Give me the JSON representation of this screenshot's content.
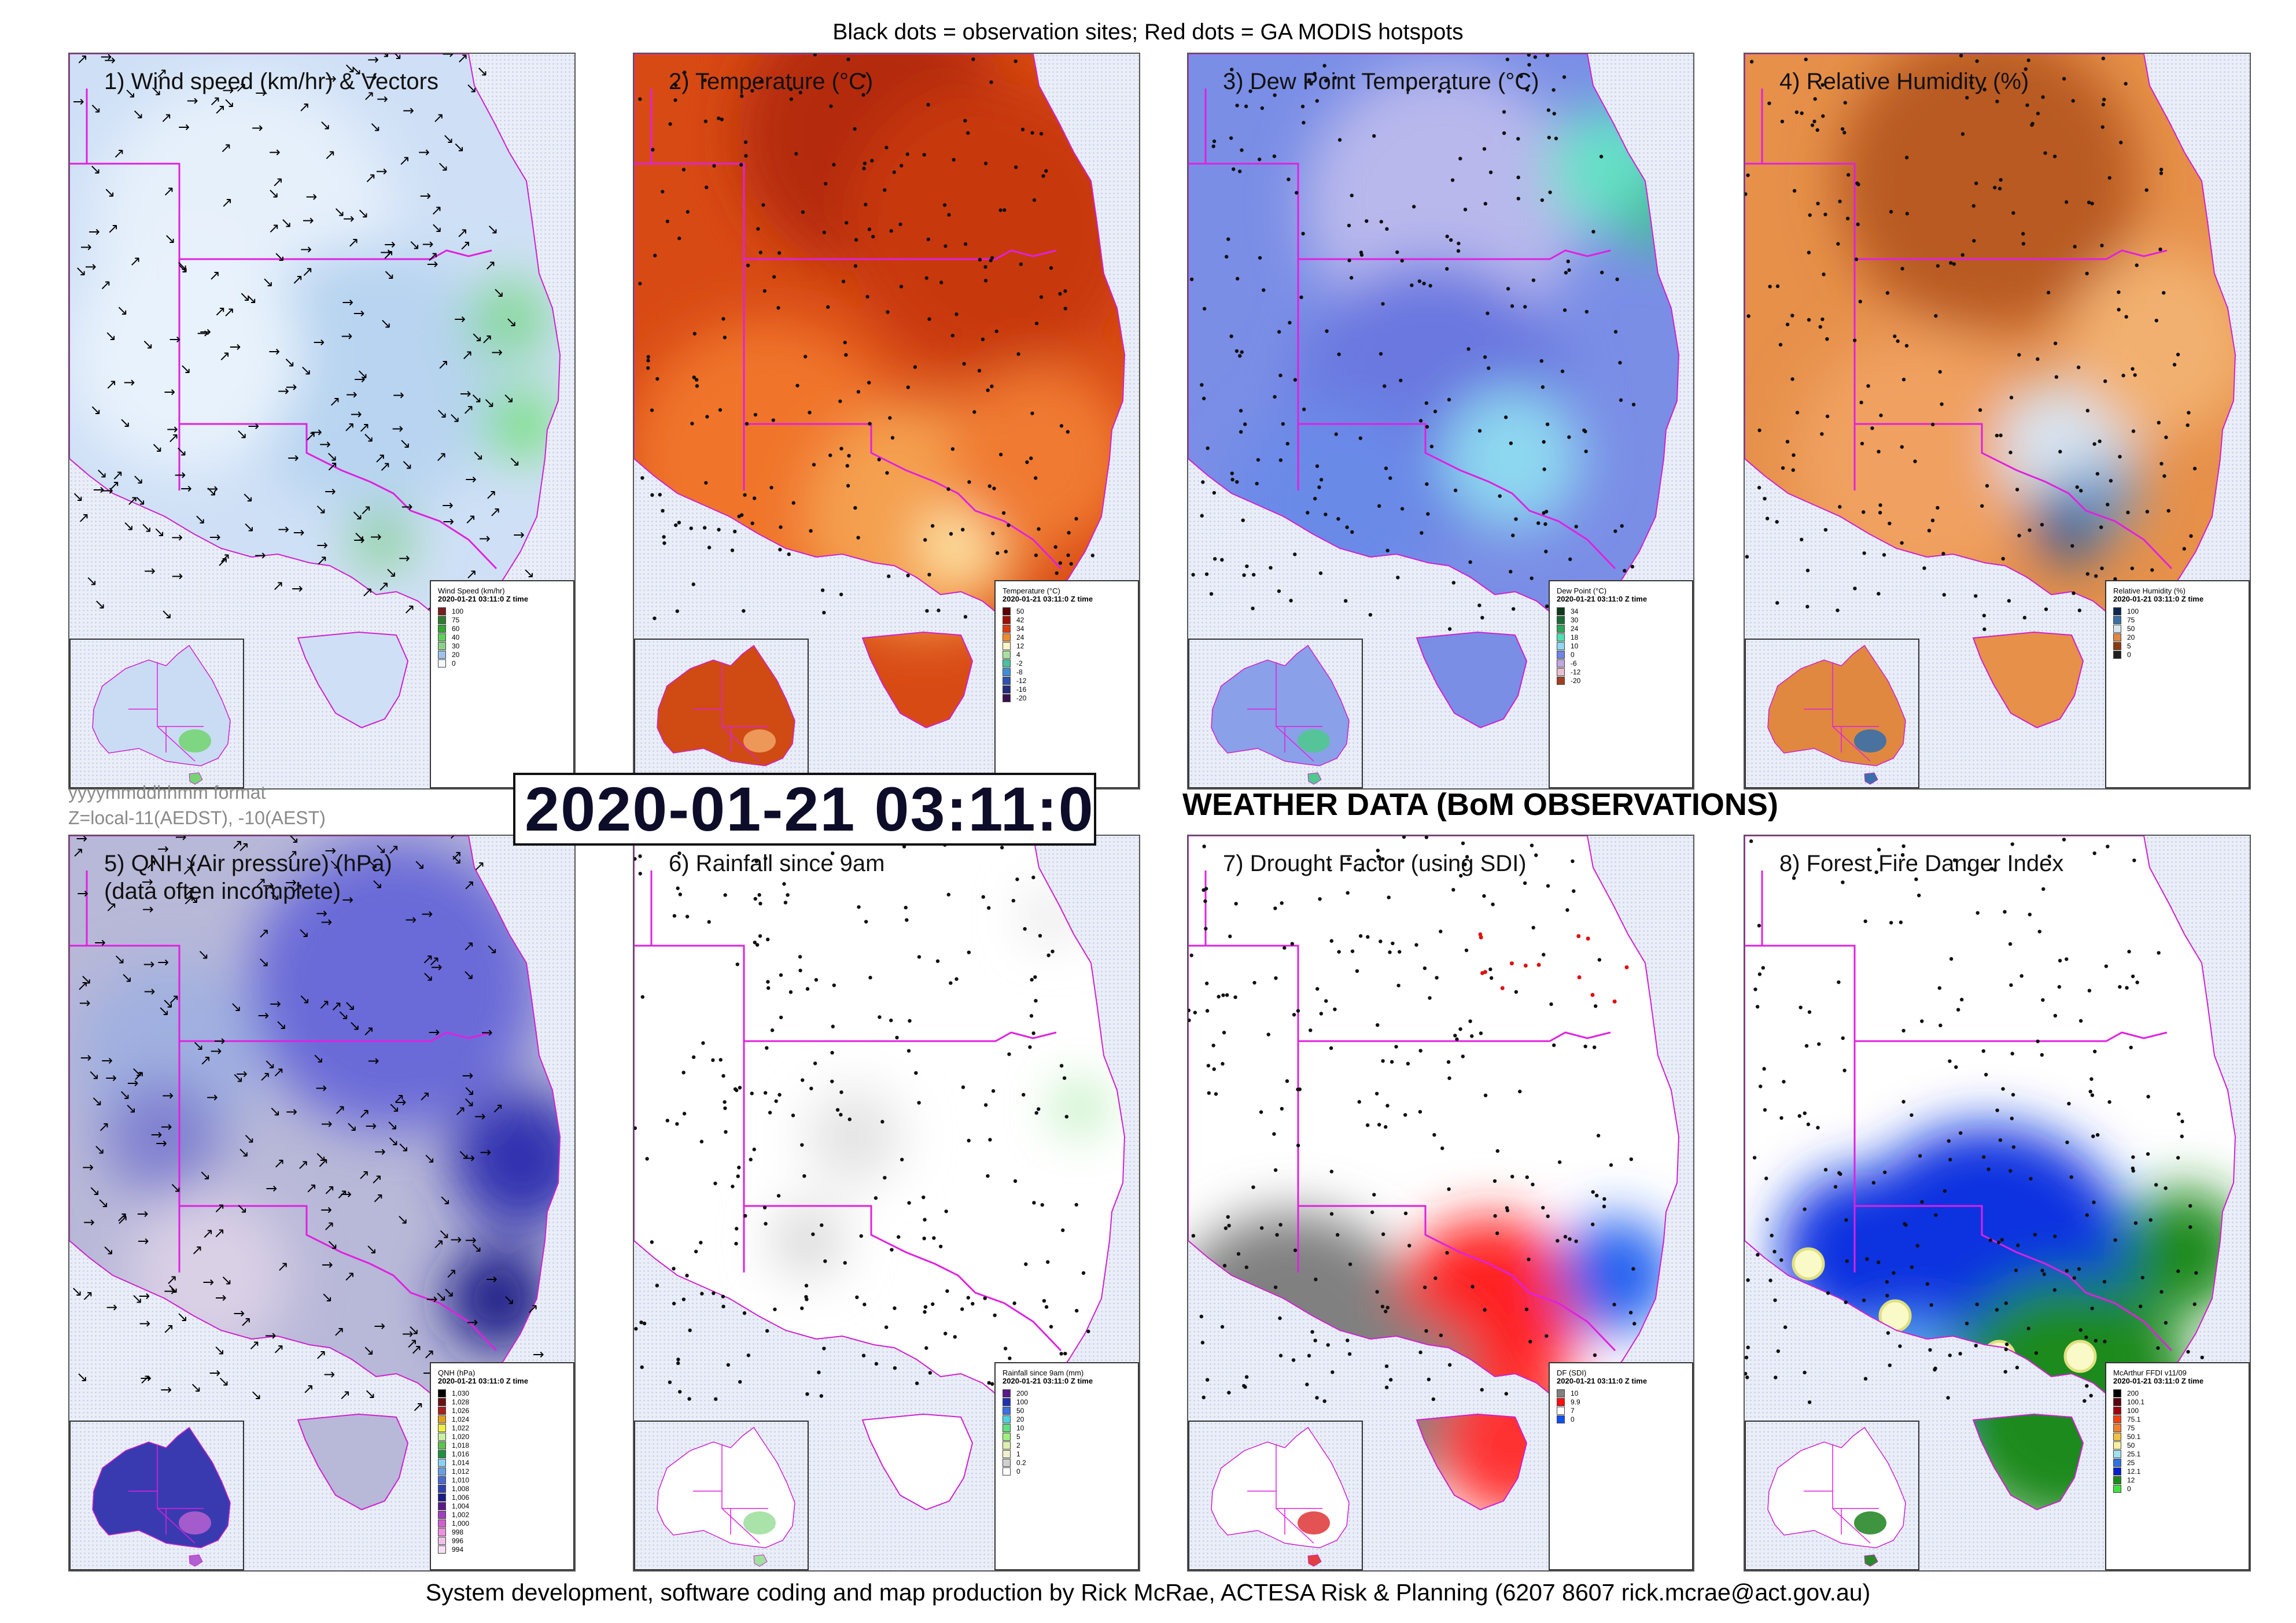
{
  "header": {
    "caption": "Black dots = observation sites; Red dots = GA MODIS hotspots"
  },
  "footer": {
    "credit": "System development, software coding and map production by Rick McRae, ACTESA Risk & Planning (6207 8607 rick.mcrae@act.gov.au)"
  },
  "center": {
    "format_note": "yyyymmddhhmm format",
    "zone_note": "Z=local-11(AEDST), -10(AEST)",
    "timestamp": "2020-01-21 03:11:0",
    "heading": "WEATHER DATA (BoM OBSERVATIONS)"
  },
  "legend_time": "2020-01-21 03:11:0 Z time",
  "panels": [
    {
      "title": "1) Wind speed (km/hr) & Vectors",
      "title2": "",
      "legend_title": "Wind Speed (km/hr)",
      "legend": [
        {
          "label": "100",
          "color": "#7a1f1f"
        },
        {
          "label": "75",
          "color": "#2e7d2e"
        },
        {
          "label": "60",
          "color": "#35a535"
        },
        {
          "label": "40",
          "color": "#5ecf5e"
        },
        {
          "label": "30",
          "color": "#8ad08a"
        },
        {
          "label": "20",
          "color": "#9ec3ea"
        },
        {
          "label": "0",
          "color": "#f4f8ff"
        }
      ]
    },
    {
      "title": "2) Temperature (°C)",
      "title2": "",
      "legend_title": "Temperature (°C)",
      "legend": [
        {
          "label": "50",
          "color": "#5c0000"
        },
        {
          "label": "42",
          "color": "#a00f00"
        },
        {
          "label": "34",
          "color": "#d93b10"
        },
        {
          "label": "24",
          "color": "#f08a30"
        },
        {
          "label": "12",
          "color": "#fff6c8"
        },
        {
          "label": "4",
          "color": "#a8e0a0"
        },
        {
          "label": "-2",
          "color": "#4cc0a0"
        },
        {
          "label": "-8",
          "color": "#3f8ed8"
        },
        {
          "label": "-12",
          "color": "#3050b0"
        },
        {
          "label": "-16",
          "color": "#252a80"
        },
        {
          "label": "-20",
          "color": "#3a1050"
        }
      ]
    },
    {
      "title": "3) Dew Point Temperature (°C)",
      "title2": "",
      "legend_title": "Dew Point (°C)",
      "legend": [
        {
          "label": "34",
          "color": "#0d3b1a"
        },
        {
          "label": "30",
          "color": "#1a6b36"
        },
        {
          "label": "24",
          "color": "#2fa55a"
        },
        {
          "label": "18",
          "color": "#50e0b0"
        },
        {
          "label": "10",
          "color": "#8ed8f0"
        },
        {
          "label": "0",
          "color": "#6f84e6"
        },
        {
          "label": "-6",
          "color": "#c0a8e0"
        },
        {
          "label": "-12",
          "color": "#e8c0d0"
        },
        {
          "label": "-20",
          "color": "#a04020"
        }
      ]
    },
    {
      "title": "4) Relative Humidity (%)",
      "title2": "",
      "legend_title": "Relative Humidity (%)",
      "legend": [
        {
          "label": "100",
          "color": "#102850"
        },
        {
          "label": "75",
          "color": "#3a70a8"
        },
        {
          "label": "50",
          "color": "#d8e4f0"
        },
        {
          "label": "20",
          "color": "#e08840"
        },
        {
          "label": "5",
          "color": "#8a3a10"
        },
        {
          "label": "0",
          "color": "#202020"
        }
      ]
    },
    {
      "title": "5) QNH (Air pressure) (hPa)",
      "title2": "(data often incomplete)",
      "legend_title": "QNH (hPa)",
      "legend": [
        {
          "label": "1,030",
          "color": "#000000"
        },
        {
          "label": "1,028",
          "color": "#6a1010"
        },
        {
          "label": "1,026",
          "color": "#a82020"
        },
        {
          "label": "1,024",
          "color": "#e0a020"
        },
        {
          "label": "1,022",
          "color": "#f0f040"
        },
        {
          "label": "1,020",
          "color": "#c8f0a0"
        },
        {
          "label": "1,018",
          "color": "#60c050"
        },
        {
          "label": "1,016",
          "color": "#209040"
        },
        {
          "label": "1,014",
          "color": "#8ad0f0"
        },
        {
          "label": "1,012",
          "color": "#6aa0e0"
        },
        {
          "label": "1,010",
          "color": "#4a6ad0"
        },
        {
          "label": "1,008",
          "color": "#3040b0"
        },
        {
          "label": "1,006",
          "color": "#1c1c88"
        },
        {
          "label": "1,004",
          "color": "#5a1a8a"
        },
        {
          "label": "1,002",
          "color": "#a040c0"
        },
        {
          "label": "1,000",
          "color": "#d060d0"
        },
        {
          "label": "998",
          "color": "#f090e0"
        },
        {
          "label": "996",
          "color": "#f0c0e8"
        },
        {
          "label": "994",
          "color": "#f8e0f4"
        }
      ]
    },
    {
      "title": "6) Rainfall since 9am",
      "title2": "",
      "legend_title": "Rainfall since 9am (mm)",
      "legend": [
        {
          "label": "200",
          "color": "#5a1a8a"
        },
        {
          "label": "100",
          "color": "#2030b0"
        },
        {
          "label": "50",
          "color": "#3a70e0"
        },
        {
          "label": "20",
          "color": "#50d0e0"
        },
        {
          "label": "10",
          "color": "#60e080"
        },
        {
          "label": "5",
          "color": "#a0f080"
        },
        {
          "label": "2",
          "color": "#e0f0b0"
        },
        {
          "label": "1",
          "color": "#f0f0d0"
        },
        {
          "label": "0.2",
          "color": "#d0d0d0"
        },
        {
          "label": "0",
          "color": "#ffffff"
        }
      ]
    },
    {
      "title": "7) Drought Factor (using SDI)",
      "title2": "",
      "legend_title": "DF (SDI)",
      "legend": [
        {
          "label": "10",
          "color": "#808080"
        },
        {
          "label": "9.9",
          "color": "#ff1010"
        },
        {
          "label": "7",
          "color": "#ffffff"
        },
        {
          "label": "0",
          "color": "#1050f0"
        }
      ]
    },
    {
      "title": "8) Forest Fire Danger Index",
      "title2": "",
      "legend_title": "McArthur FFDI v11/09",
      "legend": [
        {
          "label": "200",
          "color": "#000000"
        },
        {
          "label": "100.1",
          "color": "#5a0010"
        },
        {
          "label": "100",
          "color": "#a00010"
        },
        {
          "label": "75.1",
          "color": "#f04010"
        },
        {
          "label": "75",
          "color": "#f08030"
        },
        {
          "label": "50.1",
          "color": "#f0c040"
        },
        {
          "label": "50",
          "color": "#f8f0a0"
        },
        {
          "label": "25.1",
          "color": "#a0e0f0"
        },
        {
          "label": "25",
          "color": "#3070e0"
        },
        {
          "label": "12.1",
          "color": "#0020d0"
        },
        {
          "label": "12",
          "color": "#1a8a1a"
        },
        {
          "label": "0",
          "color": "#40e040"
        }
      ]
    }
  ]
}
